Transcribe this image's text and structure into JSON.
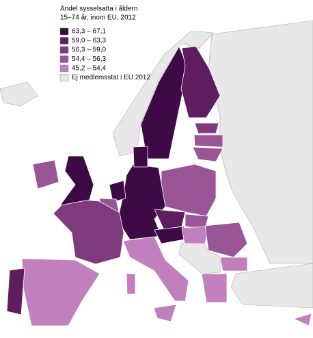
{
  "legend": {
    "title": [
      "Andel sysselsatta i åldern",
      "15–74 år, inom EU, 2012"
    ],
    "items": [
      {
        "label": "63,3 – 67,1",
        "color": "#3d0a45"
      },
      {
        "label": "59,0 – 63,3",
        "color": "#5e1d5e"
      },
      {
        "label": "56,3 – 59,0",
        "color": "#7e3a7c"
      },
      {
        "label": "54,4 – 56,3",
        "color": "#9a5597"
      },
      {
        "label": "45,2 – 54,4",
        "color": "#c27fbd"
      },
      {
        "label": "Ej medlemsstat i EU 2012",
        "color": "#e8e8e8"
      }
    ]
  }
}
